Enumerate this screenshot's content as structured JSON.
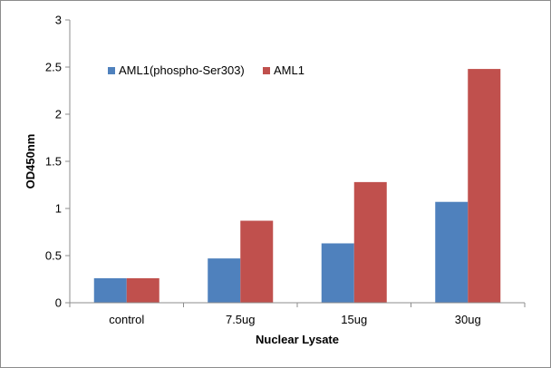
{
  "chart_data": {
    "type": "bar",
    "title": "",
    "xlabel": "Nuclear Lysate",
    "ylabel": "OD450nm",
    "ylim": [
      0,
      3
    ],
    "yticks": [
      0,
      0.5,
      1,
      1.5,
      2,
      2.5,
      3
    ],
    "ytick_labels": [
      "0",
      "0.5",
      "1",
      "1.5",
      "2",
      "2.5",
      "3"
    ],
    "categories": [
      "control",
      "7.5ug",
      "15ug",
      "30ug"
    ],
    "series": [
      {
        "name": "AML1(phospho-Ser303)",
        "color": "#4f81bd",
        "values": [
          0.26,
          0.47,
          0.63,
          1.07
        ]
      },
      {
        "name": "AML1",
        "color": "#c0504d",
        "values": [
          0.26,
          0.87,
          1.28,
          2.48
        ]
      }
    ],
    "grid": false,
    "legend_position": "top-left"
  }
}
